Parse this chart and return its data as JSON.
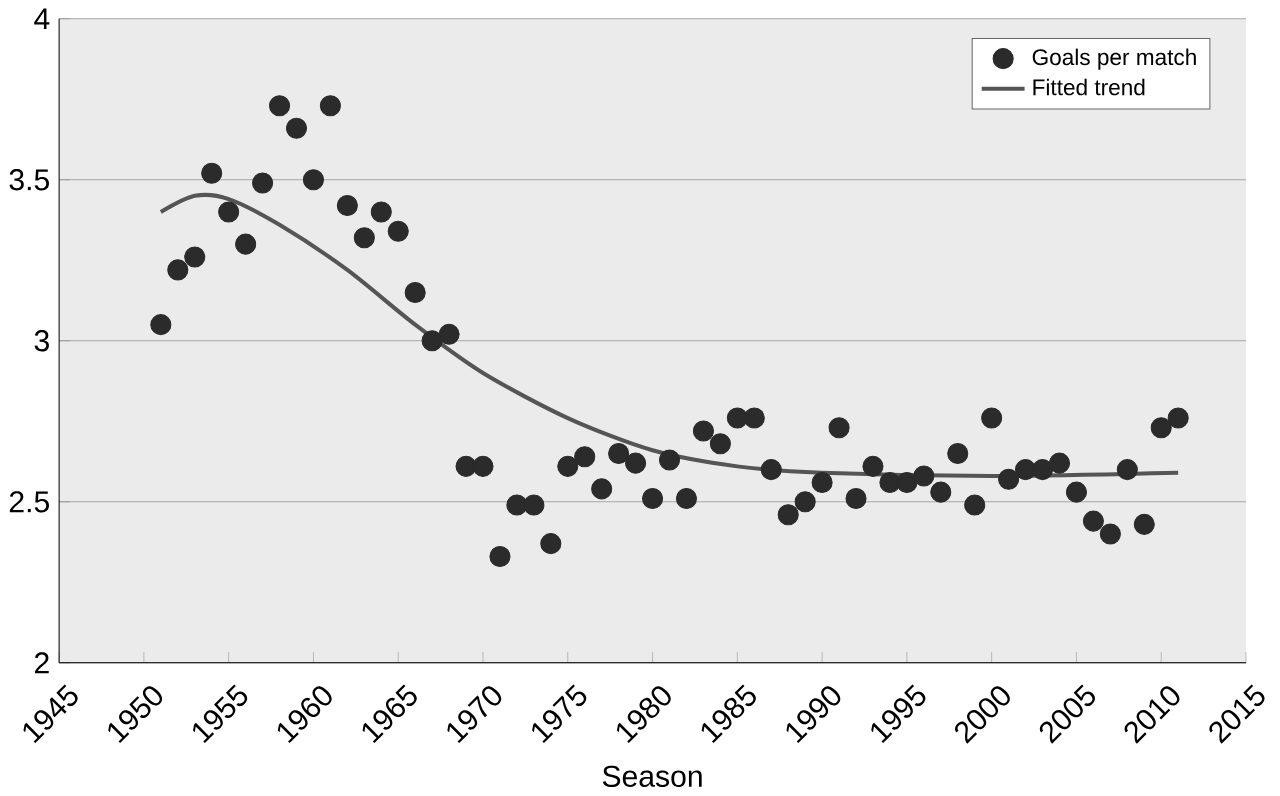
{
  "chart_data": {
    "type": "scatter",
    "xlabel": "Season",
    "xlim": [
      1945,
      2015
    ],
    "ylim": [
      2,
      4
    ],
    "xticks": [
      1945,
      1950,
      1955,
      1960,
      1965,
      1970,
      1975,
      1980,
      1985,
      1990,
      1995,
      2000,
      2005,
      2010,
      2015
    ],
    "yticks": [
      2,
      2.5,
      3,
      3.5,
      4
    ],
    "grid": "y",
    "legend": "top right",
    "series": [
      {
        "name": "Goals per match",
        "marker": "circle",
        "color": "#2b2b2b",
        "x": [
          1951,
          1952,
          1953,
          1954,
          1955,
          1956,
          1957,
          1958,
          1959,
          1960,
          1961,
          1962,
          1963,
          1964,
          1965,
          1966,
          1967,
          1968,
          1969,
          1970,
          1971,
          1972,
          1973,
          1974,
          1975,
          1976,
          1977,
          1978,
          1979,
          1980,
          1981,
          1982,
          1983,
          1984,
          1985,
          1986,
          1987,
          1988,
          1989,
          1990,
          1991,
          1992,
          1993,
          1994,
          1995,
          1996,
          1997,
          1998,
          1999,
          2000,
          2001,
          2002,
          2003,
          2004,
          2005,
          2006,
          2007,
          2008,
          2009,
          2010,
          2011
        ],
        "values": [
          3.05,
          3.22,
          3.26,
          3.52,
          3.4,
          3.3,
          3.49,
          3.73,
          3.66,
          3.5,
          3.73,
          3.42,
          3.32,
          3.4,
          3.34,
          3.15,
          3.0,
          3.02,
          2.61,
          2.61,
          2.33,
          2.49,
          2.49,
          2.37,
          2.61,
          2.64,
          2.54,
          2.65,
          2.62,
          2.51,
          2.63,
          2.51,
          2.72,
          2.68,
          2.76,
          2.76,
          2.6,
          2.46,
          2.5,
          2.56,
          2.73,
          2.51,
          2.61,
          2.56,
          2.56,
          2.58,
          2.53,
          2.65,
          2.49,
          2.76,
          2.57,
          2.6,
          2.6,
          2.62,
          2.53,
          2.44,
          2.4,
          2.6,
          2.43,
          2.73,
          2.76
        ]
      },
      {
        "name": "Fitted trend",
        "type": "line",
        "marker": "none",
        "line_style": "solid",
        "color": "#555555",
        "x": [
          1951,
          1953,
          1955,
          1958,
          1962,
          1966,
          1970,
          1975,
          1980,
          1985,
          1990,
          2000,
          2011
        ],
        "values": [
          3.4,
          3.45,
          3.44,
          3.36,
          3.22,
          3.05,
          2.9,
          2.76,
          2.66,
          2.61,
          2.59,
          2.58,
          2.59
        ]
      }
    ]
  }
}
